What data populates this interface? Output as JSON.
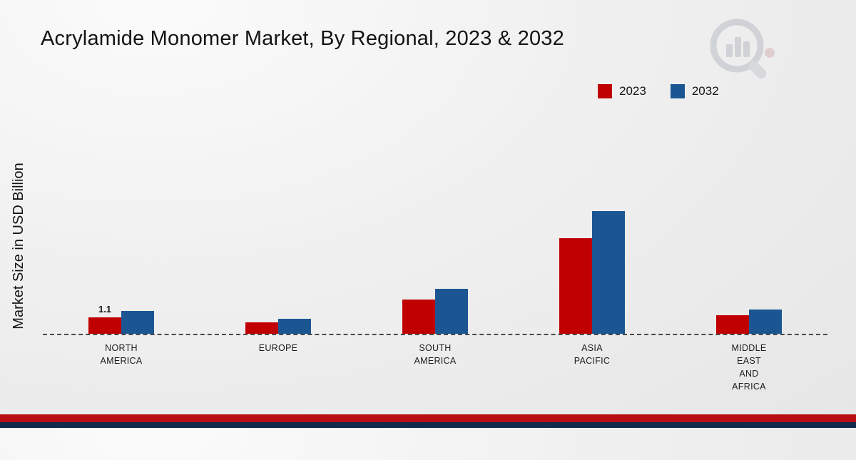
{
  "title": "Acrylamide Monomer Market, By Regional, 2023 & 2032",
  "y_axis_label": "Market Size in USD Billion",
  "legend": [
    {
      "label": "2023",
      "color": "#c00000"
    },
    {
      "label": "2032",
      "color": "#1b5693"
    }
  ],
  "colors": {
    "series_2023": "#c00000",
    "series_2032": "#1b5693",
    "footer_red": "#b80f12",
    "footer_navy": "#132a4d"
  },
  "chart_data": {
    "type": "bar",
    "title": "Acrylamide Monomer Market, By Regional, 2023 & 2032",
    "xlabel": "",
    "ylabel": "Market Size in USD Billion",
    "categories": [
      "NORTH AMERICA",
      "EUROPE",
      "SOUTH AMERICA",
      "ASIA PACIFIC",
      "MIDDLE EAST AND AFRICA"
    ],
    "category_lines": [
      [
        "NORTH",
        "AMERICA"
      ],
      [
        "EUROPE"
      ],
      [
        "SOUTH",
        "AMERICA"
      ],
      [
        "ASIA",
        "PACIFIC"
      ],
      [
        "MIDDLE",
        "EAST",
        "AND",
        "AFRICA"
      ]
    ],
    "series": [
      {
        "name": "2023",
        "color": "#c00000",
        "values": [
          1.1,
          0.75,
          2.3,
          6.4,
          1.25
        ]
      },
      {
        "name": "2032",
        "color": "#1b5693",
        "values": [
          1.5,
          1.0,
          3.0,
          8.2,
          1.6
        ]
      }
    ],
    "data_labels": [
      {
        "series": "2023",
        "category_index": 0,
        "text": "1.1"
      }
    ],
    "ylim": [
      0,
      9
    ],
    "legend_position": "top-right",
    "baseline_style": "dashed",
    "grid": false
  }
}
